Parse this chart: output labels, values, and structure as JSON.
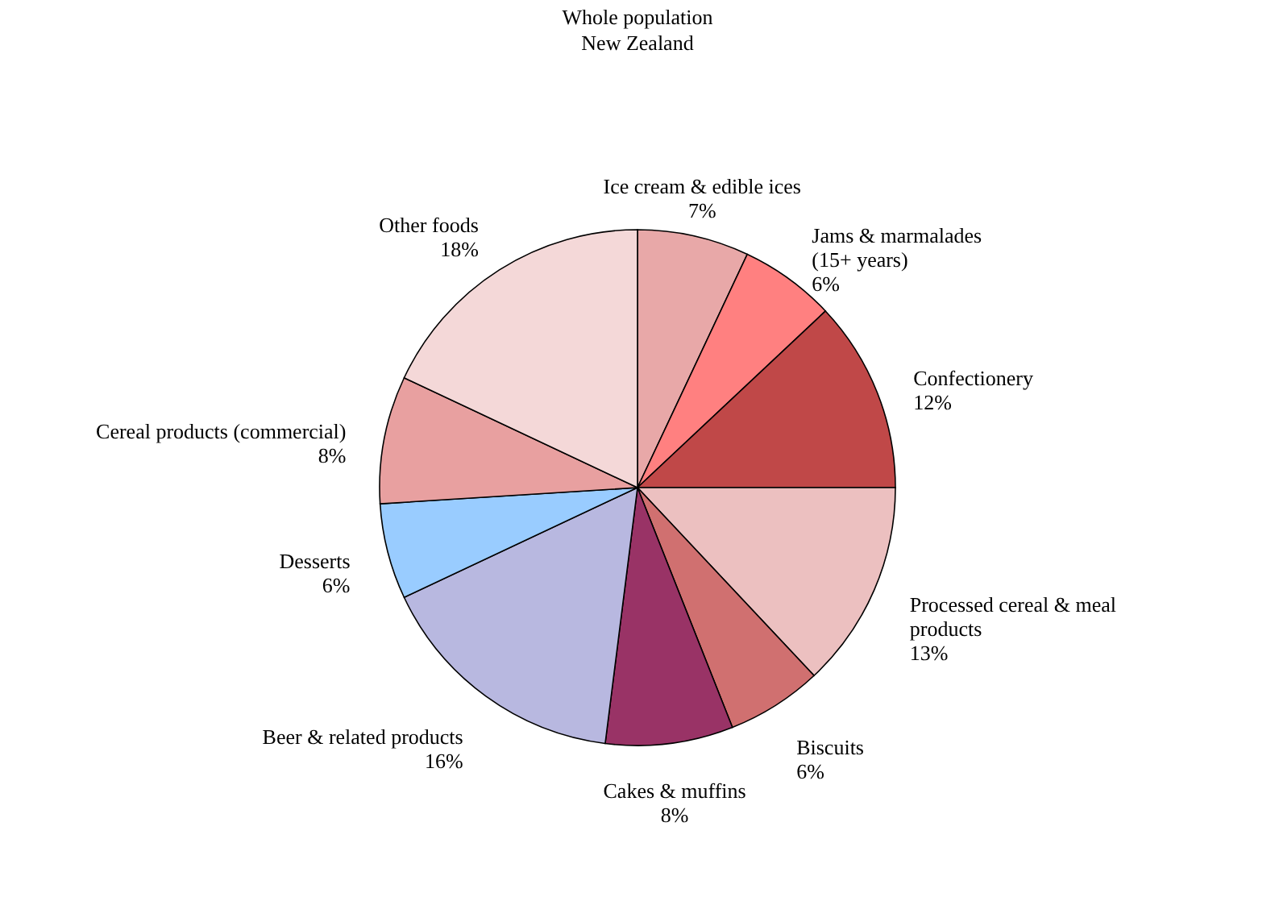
{
  "chart_data": {
    "type": "pie",
    "title": "Whole population",
    "subtitle": "New Zealand",
    "categories": [
      "Ice cream & edible ices",
      "Jams & marmalades\n(15+ years)",
      "Confectionery",
      "Processed cereal & meal\nproducts",
      "Biscuits",
      "Cakes & muffins",
      "Beer & related products",
      "Desserts",
      "Cereal products (commercial)",
      "Other foods"
    ],
    "values": [
      7,
      6,
      12,
      13,
      6,
      8,
      16,
      6,
      8,
      18
    ],
    "value_labels": [
      "7%",
      "6%",
      "12%",
      "13%",
      "6%",
      "8%",
      "16%",
      "6%",
      "8%",
      "18%"
    ],
    "colors": [
      "#e8a8a8",
      "#ff8080",
      "#c04848",
      "#ecc0c0",
      "#d07070",
      "#993366",
      "#b8b8e0",
      "#99ccff",
      "#e8a0a0",
      "#f4d8d8"
    ],
    "legend": false
  }
}
